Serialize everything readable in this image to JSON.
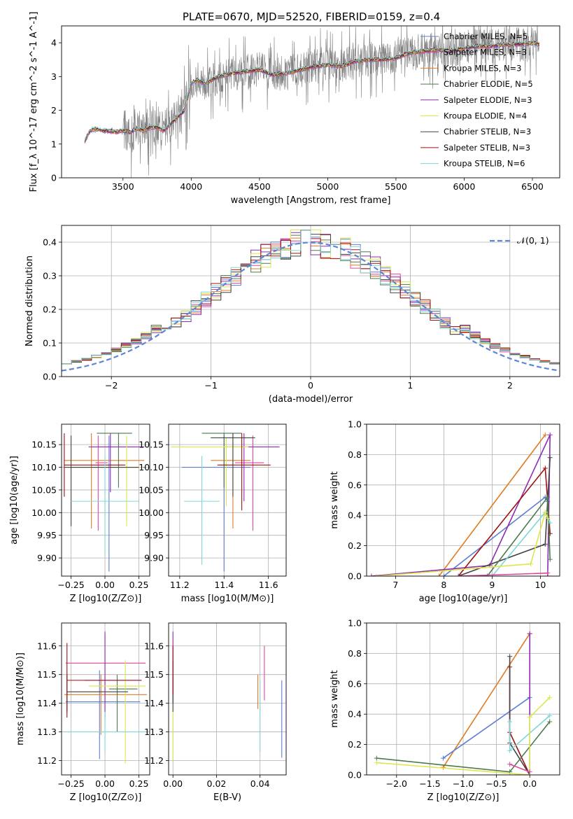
{
  "figure": {
    "title": "PLATE=0670, MJD=52520, FIBERID=0159, z=0.4"
  },
  "colors": {
    "data": "#808080",
    "Chabrier MILES": "#5b7fd6",
    "Salpeter MILES": "#e0479e",
    "Kroupa MILES": "#e07b24",
    "Chabrier ELODIE": "#4c7a4c",
    "Salpeter ELODIE": "#8e2bb4",
    "Kroupa ELODIE": "#dde64a",
    "Chabrier STELIB": "#444444",
    "Salpeter STELIB": "#a01010",
    "Kroupa STELIB": "#7fd6d6",
    "normal": "#5b87d6"
  },
  "chart_data": [
    {
      "id": "spectrum",
      "type": "line",
      "title": "PLATE=0670, MJD=52520, FIBERID=0159, z=0.4",
      "xlabel": "wavelength [Angstrom, rest frame]",
      "ylabel": "Flux [f_λ 10^-17 erg cm^-2 s^-1 A^-1]",
      "xlim": [
        3050,
        6700
      ],
      "ylim": [
        0,
        4.5
      ],
      "xticks": [
        "3500",
        "4000",
        "4500",
        "5000",
        "5500",
        "6000",
        "6500"
      ],
      "yticks": [
        "0",
        "1",
        "2",
        "3",
        "4"
      ],
      "grid": false,
      "legend_position": "top-right",
      "series": [
        {
          "name": "Chabrier MILES, N_SSP=5"
        },
        {
          "name": "Salpeter MILES, N_SSP=3"
        },
        {
          "name": "Kroupa MILES, N_SSP=3"
        },
        {
          "name": "Chabrier ELODIE, N_SSP=5"
        },
        {
          "name": "Salpeter ELODIE, N_SSP=3"
        },
        {
          "name": "Kroupa ELODIE, N_SSP=4"
        },
        {
          "name": "Chabrier STELIB, N_SSP=3"
        },
        {
          "name": "Salpeter STELIB, N_SSP=3"
        },
        {
          "name": "Kroupa STELIB, N_SSP=6"
        }
      ],
      "model_points": {
        "x": [
          3220,
          3260,
          3300,
          3350,
          3400,
          3450,
          3500,
          3550,
          3600,
          3650,
          3700,
          3750,
          3800,
          3850,
          3900,
          3950,
          4000,
          4050,
          4100,
          4200,
          4300,
          4400,
          4500,
          4600,
          4700,
          4800,
          4900,
          5000,
          5100,
          5200,
          5300,
          5400,
          5500,
          5600,
          5700,
          5800,
          5900,
          6000,
          6100,
          6200,
          6300,
          6400,
          6500,
          6550
        ],
        "y": [
          1.1,
          1.4,
          1.45,
          1.4,
          1.38,
          1.36,
          1.4,
          1.35,
          1.45,
          1.4,
          1.5,
          1.5,
          1.4,
          1.6,
          1.8,
          2.0,
          2.8,
          2.9,
          2.8,
          3.0,
          3.1,
          3.15,
          3.2,
          3.05,
          3.1,
          3.2,
          3.3,
          3.35,
          3.3,
          3.45,
          3.5,
          3.5,
          3.55,
          3.7,
          3.75,
          3.8,
          3.75,
          3.85,
          3.9,
          3.9,
          3.95,
          3.95,
          4.0,
          3.95
        ]
      }
    },
    {
      "id": "residuals",
      "type": "line",
      "xlabel": "(data-model)/error",
      "ylabel": "Normed distribution",
      "xlim": [
        -2.5,
        2.5
      ],
      "ylim": [
        0,
        0.45
      ],
      "xticks": [
        "−2",
        "−1",
        "0",
        "1",
        "2"
      ],
      "yticks": [
        "0.0",
        "0.1",
        "0.2",
        "0.3",
        "0.4"
      ],
      "grid": true,
      "legend_position": "top-right",
      "legend": "𝒩(0, 1)",
      "normal_mean": 0,
      "normal_sigma": 1
    },
    {
      "id": "age-vs-Z",
      "type": "scatter",
      "xlabel": "Z [log10(Z/Z⊙)]",
      "ylabel": "age [log10(age/yr)]",
      "xlim": [
        -0.32,
        0.33
      ],
      "ylim": [
        9.86,
        10.195
      ],
      "xticks": [
        "−0.25",
        "0.00",
        "0.25"
      ],
      "yticks": [
        "9.90",
        "9.95",
        "10.00",
        "10.05",
        "10.10",
        "10.15"
      ],
      "grid": true,
      "points": [
        {
          "series": "Chabrier MILES",
          "x": 0.03,
          "xerr": [
            0.3,
            0.27
          ],
          "y": 10.1,
          "yerr": [
            0.23,
            0.07
          ]
        },
        {
          "series": "Salpeter MILES",
          "x": -0.05,
          "xerr": [
            0.02,
            0.07
          ],
          "y": 10.11,
          "yerr": [
            0.15,
            0.06
          ]
        },
        {
          "series": "Kroupa MILES",
          "x": -0.1,
          "xerr": [
            0.2,
            0.39
          ],
          "y": 10.115,
          "yerr": [
            0.15,
            0.06
          ]
        },
        {
          "series": "Chabrier ELODIE",
          "x": 0.1,
          "xerr": [
            0.16,
            0.1
          ],
          "y": 10.175,
          "yerr": [
            0.12,
            0.0
          ]
        },
        {
          "series": "Salpeter ELODIE",
          "x": 0.04,
          "xerr": [
            0.16,
            0.25
          ],
          "y": 10.145,
          "yerr": [
            0.1,
            0.03
          ]
        },
        {
          "series": "Kroupa ELODIE",
          "x": 0.16,
          "xerr": [
            0.45,
            0.12
          ],
          "y": 10.1,
          "yerr": [
            0.13,
            0.07
          ]
        },
        {
          "series": "Chabrier STELIB",
          "x": -0.25,
          "xerr": [
            0.05,
            0.5
          ],
          "y": 10.1,
          "yerr": [
            0.13,
            0.07
          ]
        },
        {
          "series": "Salpeter STELIB",
          "x": -0.3,
          "xerr": [
            0.0,
            0.45
          ],
          "y": 10.105,
          "yerr": [
            0.07,
            0.07
          ]
        },
        {
          "series": "Kroupa STELIB",
          "x": 0.0,
          "xerr": [
            0.25,
            0.25
          ],
          "y": 10.025,
          "yerr": [
            0.12,
            0.1
          ]
        }
      ]
    },
    {
      "id": "age-vs-mass",
      "type": "scatter",
      "xlabel": "mass [log10(M/M⊙)]",
      "ylabel": "",
      "xlim": [
        11.15,
        11.68
      ],
      "ylim": [
        9.86,
        10.195
      ],
      "xticks": [
        "11.2",
        "11.4",
        "11.6"
      ],
      "yticks": [
        "9.90",
        "9.95",
        "10.00",
        "10.05",
        "10.10",
        "10.15"
      ],
      "grid": true,
      "points": [
        {
          "series": "Chabrier MILES",
          "x": 11.4,
          "xerr": [
            0.19,
            0.12
          ],
          "y": 10.1,
          "yerr": [
            0.23,
            0.07
          ]
        },
        {
          "series": "Salpeter MILES",
          "x": 11.53,
          "xerr": [
            0.08,
            0.05
          ],
          "y": 10.11,
          "yerr": [
            0.15,
            0.06
          ]
        },
        {
          "series": "Kroupa MILES",
          "x": 11.44,
          "xerr": [
            0.1,
            0.08
          ],
          "y": 10.115,
          "yerr": [
            0.15,
            0.06
          ]
        },
        {
          "series": "Chabrier ELODIE",
          "x": 11.4,
          "xerr": [
            0.1,
            0.08
          ],
          "y": 10.175,
          "yerr": [
            0.12,
            0.0
          ]
        },
        {
          "series": "Salpeter ELODIE",
          "x": 11.49,
          "xerr": [
            0.08,
            0.16
          ],
          "y": 10.145,
          "yerr": [
            0.12,
            0.03
          ]
        },
        {
          "series": "Kroupa ELODIE",
          "x": 11.41,
          "xerr": [
            0.25,
            0.1
          ],
          "y": 10.145,
          "yerr": [
            0.13,
            0.02
          ]
        },
        {
          "series": "Chabrier STELIB",
          "x": 11.44,
          "xerr": [
            0.1,
            0.1
          ],
          "y": 10.165,
          "yerr": [
            0.13,
            0.01
          ]
        },
        {
          "series": "Salpeter STELIB",
          "x": 11.48,
          "xerr": [
            0.11,
            0.13
          ],
          "y": 10.105,
          "yerr": [
            0.1,
            0.07
          ]
        },
        {
          "series": "Kroupa STELIB",
          "x": 11.3,
          "xerr": [
            0.08,
            0.08
          ],
          "y": 10.025,
          "yerr": [
            0.14,
            0.1
          ]
        }
      ]
    },
    {
      "id": "weight-vs-age",
      "type": "line",
      "xlabel": "age [log10(age/yr)]",
      "ylabel": "mass weight",
      "xlim": [
        6.4,
        10.4
      ],
      "ylim": [
        0,
        1.0
      ],
      "xticks": [
        "7",
        "8",
        "9",
        "10"
      ],
      "yticks": [
        "0.0",
        "0.2",
        "0.4",
        "0.6",
        "0.8",
        "1.0"
      ],
      "grid": true,
      "series": [
        {
          "series": "Kroupa MILES",
          "x": [
            7.9,
            10.1
          ],
          "y": [
            0.0,
            0.93
          ]
        },
        {
          "series": "Chabrier MILES",
          "x": [
            8.0,
            10.1,
            10.15
          ],
          "y": [
            0.0,
            0.52,
            0.49
          ]
        },
        {
          "series": "Salpeter ELODIE",
          "x": [
            6.5,
            8.95,
            10.2,
            10.15
          ],
          "y": [
            0.0,
            0.07,
            0.93,
            0.0
          ]
        },
        {
          "series": "Salpeter STELIB",
          "x": [
            8.3,
            10.1,
            10.2
          ],
          "y": [
            0.0,
            0.71,
            0.28
          ]
        },
        {
          "series": "Chabrier STELIB",
          "x": [
            8.3,
            10.1,
            10.2
          ],
          "y": [
            0.0,
            0.21,
            0.78
          ]
        },
        {
          "series": "Chabrier ELODIE",
          "x": [
            8.9,
            10.15,
            10.2
          ],
          "y": [
            0.0,
            0.52,
            0.11
          ]
        },
        {
          "series": "Kroupa STELIB",
          "x": [
            9.0,
            10.1,
            10.2
          ],
          "y": [
            0.0,
            0.42,
            0.35
          ]
        },
        {
          "series": "Kroupa ELODIE",
          "x": [
            6.6,
            9.8,
            10.1,
            10.15
          ],
          "y": [
            0.0,
            0.08,
            0.42,
            0.38
          ]
        },
        {
          "series": "Salpeter MILES",
          "x": [
            8.3,
            10.15
          ],
          "y": [
            0.0,
            0.02
          ]
        }
      ]
    },
    {
      "id": "mass-vs-Z",
      "type": "scatter",
      "xlabel": "Z [log10(Z/Z⊙)]",
      "ylabel": "mass [log10(M/M⊙)]",
      "xlim": [
        -0.32,
        0.33
      ],
      "ylim": [
        11.15,
        11.68
      ],
      "xticks": [
        "−0.25",
        "0.00",
        "0.25"
      ],
      "yticks": [
        "11.2",
        "11.3",
        "11.4",
        "11.5",
        "11.6"
      ],
      "grid": true,
      "points": [
        {
          "series": "Chabrier MILES",
          "x": -0.04,
          "xerr": [
            0.25,
            0.3
          ],
          "y": 11.405,
          "yerr": [
            0.2,
            0.11
          ]
        },
        {
          "series": "Salpeter MILES",
          "x": 0.0,
          "xerr": [
            0.29,
            0.3
          ],
          "y": 11.54,
          "yerr": [
            0.2,
            0.1
          ]
        },
        {
          "series": "Kroupa MILES",
          "x": -0.03,
          "xerr": [
            0.27,
            0.34
          ],
          "y": 11.43,
          "yerr": [
            0.14,
            0.07
          ]
        },
        {
          "series": "Chabrier ELODIE",
          "x": 0.09,
          "xerr": [
            0.06,
            0.15
          ],
          "y": 11.45,
          "yerr": [
            0.15,
            0.05
          ]
        },
        {
          "series": "Salpeter ELODIE",
          "x": 0.0,
          "xerr": [
            0.15,
            0.27
          ],
          "y": 11.48,
          "yerr": [
            0.13,
            0.17
          ]
        },
        {
          "series": "Kroupa ELODIE",
          "x": 0.15,
          "xerr": [
            0.27,
            0.15
          ],
          "y": 11.46,
          "yerr": [
            0.27,
            0.09
          ]
        },
        {
          "series": "Chabrier STELIB",
          "x": -0.28,
          "xerr": [
            0.0,
            0.45
          ],
          "y": 11.44,
          "yerr": [
            0.07,
            0.06
          ]
        },
        {
          "series": "Salpeter STELIB",
          "x": -0.28,
          "xerr": [
            0.0,
            0.55
          ],
          "y": 11.48,
          "yerr": [
            0.13,
            0.13
          ]
        },
        {
          "series": "Kroupa STELIB",
          "x": 0.0,
          "xerr": [
            0.3,
            0.3
          ],
          "y": 11.3,
          "yerr": [
            0.07,
            0.07
          ]
        }
      ]
    },
    {
      "id": "mass-vs-ebv",
      "type": "scatter",
      "xlabel": "E(B-V)",
      "ylabel": "",
      "xlim": [
        -0.002,
        0.052
      ],
      "ylim": [
        11.15,
        11.68
      ],
      "xticks": [
        "0.00",
        "0.02",
        "0.04"
      ],
      "yticks": [
        "11.2",
        "11.3",
        "11.4",
        "11.5",
        "11.6"
      ],
      "grid": true,
      "points": [
        {
          "series": "Chabrier MILES",
          "x": 0.05,
          "y": 11.35,
          "yerr": [
            0.14,
            0.13
          ]
        },
        {
          "series": "Salpeter MILES",
          "x": 0.042,
          "y": 11.53,
          "yerr": [
            0.12,
            0.07
          ]
        },
        {
          "series": "Kroupa MILES",
          "x": 0.039,
          "y": 11.45,
          "yerr": [
            0.07,
            0.05
          ]
        },
        {
          "series": "Chabrier ELODIE",
          "x": 0.0,
          "y": 11.45,
          "yerr": [
            0.05,
            0.05
          ]
        },
        {
          "series": "Salpeter ELODIE",
          "x": 0.0,
          "y": 11.5,
          "yerr": [
            0.1,
            0.15
          ]
        },
        {
          "series": "Kroupa ELODIE",
          "x": 0.0,
          "y": 11.3,
          "yerr": [
            0.1,
            0.08
          ]
        },
        {
          "series": "Chabrier STELIB",
          "x": 0.0,
          "y": 11.45,
          "yerr": [
            0.08,
            0.1
          ]
        },
        {
          "series": "Salpeter STELIB",
          "x": 0.0,
          "y": 11.5,
          "yerr": [
            0.07,
            0.1
          ]
        },
        {
          "series": "Kroupa STELIB",
          "x": 0.04,
          "y": 11.3,
          "yerr": [
            0.07,
            0.18
          ]
        }
      ]
    },
    {
      "id": "weight-vs-Z",
      "type": "line",
      "xlabel": "Z [log10(Z/Z⊙)]",
      "ylabel": "mass weight",
      "xlim": [
        -2.45,
        0.45
      ],
      "ylim": [
        0,
        1.0
      ],
      "xticks": [
        "−2.0",
        "−1.5",
        "−1.0",
        "−0.5",
        "0.0"
      ],
      "yticks": [
        "0.0",
        "0.2",
        "0.4",
        "0.6",
        "0.8",
        "1.0"
      ],
      "grid": true,
      "series": [
        {
          "series": "Kroupa MILES",
          "x": [
            -1.3,
            0.0
          ],
          "y": [
            0.05,
            0.93
          ]
        },
        {
          "series": "Chabrier MILES",
          "x": [
            -1.3,
            0.0
          ],
          "y": [
            0.11,
            0.51
          ]
        },
        {
          "series": "Salpeter ELODIE",
          "x": [
            0.0,
            0.0
          ],
          "y": [
            0.0,
            0.93
          ]
        },
        {
          "series": "Salpeter STELIB",
          "x": [
            -0.3,
            -0.3,
            0.0
          ],
          "y": [
            0.71,
            0.28,
            0.0
          ]
        },
        {
          "series": "Chabrier STELIB",
          "x": [
            -0.3,
            -0.3,
            0.0
          ],
          "y": [
            0.78,
            0.21,
            0.0
          ]
        },
        {
          "series": "Chabrier ELODIE",
          "x": [
            -2.3,
            -0.3,
            0.3
          ],
          "y": [
            0.11,
            0.02,
            0.35
          ]
        },
        {
          "series": "Kroupa STELIB",
          "x": [
            -0.3,
            -0.3,
            0.3
          ],
          "y": [
            0.35,
            0.16,
            0.39
          ]
        },
        {
          "series": "Kroupa ELODIE",
          "x": [
            -2.3,
            0.0,
            0.0,
            0.3
          ],
          "y": [
            0.08,
            0.0,
            0.38,
            0.51
          ]
        },
        {
          "series": "Salpeter MILES",
          "x": [
            -0.3,
            0.0
          ],
          "y": [
            0.07,
            0.02
          ]
        }
      ]
    }
  ]
}
